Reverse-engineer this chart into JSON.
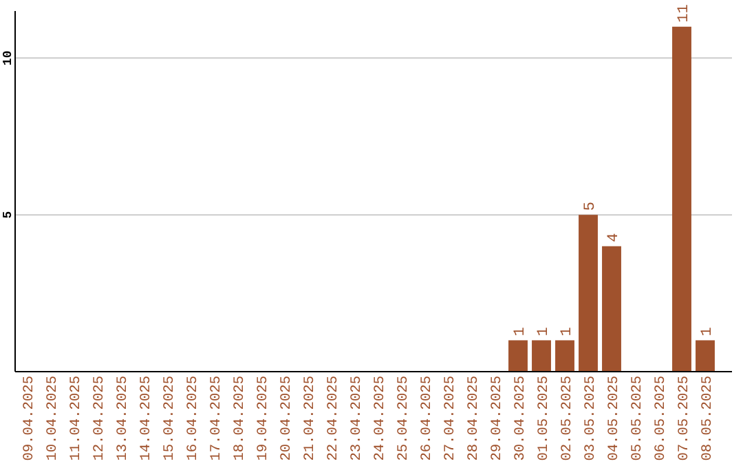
{
  "chart_data": {
    "type": "bar",
    "categories": [
      "09.04.2025",
      "10.04.2025",
      "11.04.2025",
      "12.04.2025",
      "13.04.2025",
      "14.04.2025",
      "15.04.2025",
      "16.04.2025",
      "17.04.2025",
      "18.04.2025",
      "19.04.2025",
      "20.04.2025",
      "21.04.2025",
      "22.04.2025",
      "23.04.2025",
      "24.04.2025",
      "25.04.2025",
      "26.04.2025",
      "27.04.2025",
      "28.04.2025",
      "29.04.2025",
      "30.04.2025",
      "01.05.2025",
      "02.05.2025",
      "03.05.2025",
      "04.05.2025",
      "05.05.2025",
      "06.05.2025",
      "07.05.2025",
      "08.05.2025"
    ],
    "values": [
      0,
      0,
      0,
      0,
      0,
      0,
      0,
      0,
      0,
      0,
      0,
      0,
      0,
      0,
      0,
      0,
      0,
      0,
      0,
      0,
      0,
      1,
      1,
      1,
      5,
      4,
      0,
      0,
      11,
      1
    ],
    "value_labels": [
      null,
      null,
      null,
      null,
      null,
      null,
      null,
      null,
      null,
      null,
      null,
      null,
      null,
      null,
      null,
      null,
      null,
      null,
      null,
      null,
      null,
      "1",
      "1",
      "1",
      "5",
      "4",
      null,
      null,
      "11",
      "1"
    ],
    "color": "#a0522d",
    "ylim": [
      0,
      11.5
    ],
    "yticks": [
      5,
      10
    ],
    "grid": "y"
  }
}
